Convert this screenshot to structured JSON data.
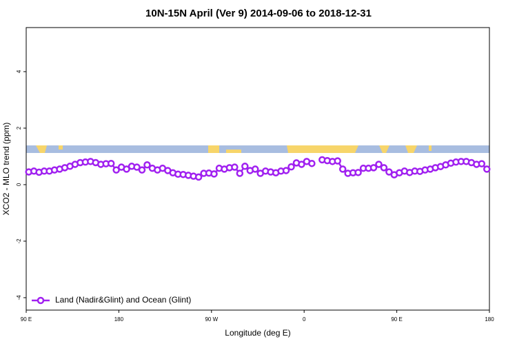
{
  "chart_data": {
    "type": "line",
    "title": "10N-15N April (Ver 9)   2014-09-06 to 2018-12-31",
    "x_label": "Longitude (deg E)",
    "y_label": "XCO2 - MLO trend (ppm)",
    "x": [
      92.5,
      97.5,
      102.5,
      107.5,
      112.5,
      117.5,
      122.5,
      127.5,
      132.5,
      137.5,
      142.5,
      147.5,
      152.5,
      157.5,
      162.5,
      167.5,
      172.5,
      177.5,
      182.5,
      187.5,
      192.5,
      197.5,
      202.5,
      207.5,
      212.5,
      217.5,
      222.5,
      227.5,
      232.5,
      237.5,
      242.5,
      247.5,
      252.5,
      257.5,
      262.5,
      267.5,
      272.5,
      277.5,
      282.5,
      287.5,
      292.5,
      297.5,
      302.5,
      307.5,
      312.5,
      317.5,
      322.5,
      327.5,
      332.5,
      337.5,
      342.5,
      347.5,
      352.5,
      357.5,
      362.5,
      367.5,
      372.5,
      377.5,
      382.5,
      387.5,
      392.5,
      397.5,
      402.5,
      407.5,
      412.5,
      417.5,
      422.5,
      427.5,
      432.5,
      437.5,
      442.5,
      447.5,
      452.5,
      457.5,
      462.5,
      467.5,
      472.5,
      477.5,
      482.5,
      487.5,
      492.5,
      497.5,
      502.5,
      507.5,
      512.5,
      517.5,
      522.5,
      527.5,
      532.5,
      537.5
    ],
    "series": [
      {
        "name": "Land (Nadir&Glint) and Ocean (Glint)",
        "color": "#a020f0",
        "values": [
          0.45,
          0.48,
          0.44,
          0.48,
          0.48,
          0.52,
          0.55,
          0.6,
          0.65,
          0.72,
          0.78,
          0.8,
          0.82,
          0.78,
          0.72,
          0.74,
          0.75,
          0.52,
          0.62,
          0.55,
          0.65,
          0.62,
          0.52,
          0.7,
          0.58,
          0.52,
          0.58,
          0.5,
          0.42,
          0.37,
          0.36,
          0.33,
          0.3,
          0.27,
          0.4,
          0.41,
          0.38,
          0.58,
          0.55,
          0.6,
          0.62,
          0.4,
          0.65,
          0.5,
          0.55,
          0.4,
          0.48,
          0.45,
          0.42,
          0.48,
          0.5,
          0.63,
          0.77,
          0.72,
          0.82,
          0.75,
          null,
          0.88,
          0.85,
          0.82,
          0.84,
          0.55,
          0.4,
          0.42,
          0.43,
          0.58,
          0.58,
          0.6,
          0.72,
          0.6,
          0.45,
          0.35,
          0.42,
          0.48,
          0.43,
          0.48,
          0.47,
          0.52,
          0.55,
          0.6,
          0.64,
          0.7,
          0.76,
          0.8,
          0.82,
          0.82,
          0.78,
          0.72,
          0.74,
          0.55
        ]
      }
    ],
    "xlim": [
      90,
      540
    ],
    "xticks": [
      {
        "value": 90,
        "label": "90 E"
      },
      180,
      {
        "value": 270,
        "label": "90 W"
      },
      {
        "value": 360,
        "label": "0"
      },
      {
        "value": 450,
        "label": "90 E"
      },
      {
        "value": 540,
        "label": "180"
      }
    ],
    "ylim": [
      -4.44,
      5.56
    ],
    "yticks": [
      -4,
      -2,
      0,
      2,
      4
    ],
    "legend": "bottomleft"
  }
}
